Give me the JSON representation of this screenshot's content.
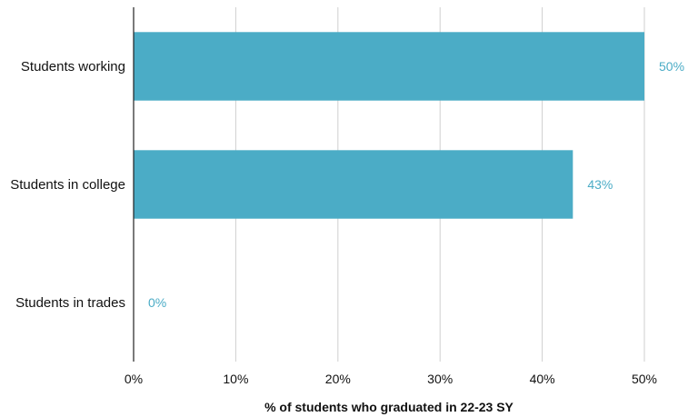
{
  "chart_data": {
    "type": "bar",
    "orientation": "horizontal",
    "categories": [
      "Students working",
      "Students in college",
      "Students in trades"
    ],
    "values": [
      50,
      43,
      0
    ],
    "value_labels": [
      "50%",
      "43%",
      "0%"
    ],
    "xlim": [
      0,
      50
    ],
    "x_ticks": [
      0,
      10,
      20,
      30,
      40,
      50
    ],
    "x_tick_labels": [
      "0%",
      "10%",
      "20%",
      "30%",
      "40%",
      "50%"
    ],
    "xlabel": "% of students who graduated in 22-23 SY",
    "ylabel": "",
    "title": "",
    "grid": "vertical",
    "legend": "none",
    "bar_color": "#4bacc6",
    "label_color": "#4bacc6"
  }
}
